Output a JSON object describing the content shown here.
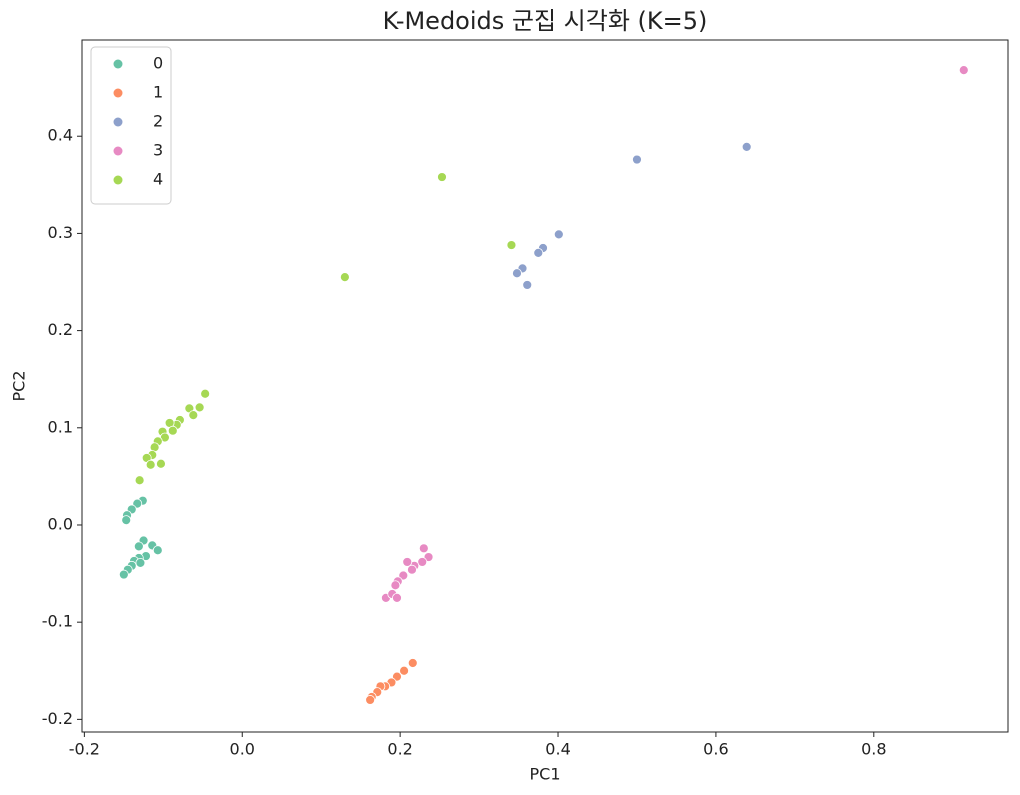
{
  "chart_data": {
    "type": "scatter",
    "title": "K-Medoids 군집 시각화 (K=5)",
    "x_label": "PC1",
    "y_label": "PC2",
    "xlim": [
      -0.203,
      0.97
    ],
    "ylim": [
      -0.213,
      0.499
    ],
    "xticks": [
      -0.2,
      {
        "value": 0,
        "label": "0.0"
      },
      0.2,
      0.4,
      0.6,
      0.8
    ],
    "yticks": [
      -0.2,
      -0.1,
      {
        "value": 0,
        "label": "0.0"
      },
      0.1,
      0.2,
      0.3,
      0.4
    ],
    "legend": "upper left",
    "series": [
      {
        "name": "0",
        "color": "#66c2a5",
        "x": [
          -0.126,
          -0.133,
          -0.14,
          -0.146,
          -0.147,
          -0.125,
          -0.131,
          -0.114,
          -0.107,
          -0.122,
          -0.131,
          -0.137,
          -0.129,
          -0.14,
          -0.145,
          -0.15
        ],
        "y": [
          0.025,
          0.022,
          0.016,
          0.01,
          0.005,
          -0.016,
          -0.022,
          -0.021,
          -0.026,
          -0.032,
          -0.034,
          -0.037,
          -0.039,
          -0.042,
          -0.046,
          -0.051
        ]
      },
      {
        "name": "1",
        "color": "#fc8d62",
        "x": [
          0.216,
          0.205,
          0.196,
          0.189,
          0.181,
          0.175,
          0.171,
          0.164,
          0.162
        ],
        "y": [
          -0.142,
          -0.15,
          -0.156,
          -0.162,
          -0.166,
          -0.166,
          -0.172,
          -0.177,
          -0.18
        ]
      },
      {
        "name": "2",
        "color": "#8da0cb",
        "x": [
          0.639,
          0.5,
          0.401,
          0.381,
          0.375,
          0.355,
          0.348,
          0.361
        ],
        "y": [
          0.389,
          0.376,
          0.299,
          0.285,
          0.28,
          0.264,
          0.259,
          0.247
        ]
      },
      {
        "name": "3",
        "color": "#e78ac3",
        "x": [
          0.914,
          0.23,
          0.236,
          0.228,
          0.218,
          0.209,
          0.215,
          0.204,
          0.197,
          0.194,
          0.182,
          0.19,
          0.196
        ],
        "y": [
          0.468,
          -0.024,
          -0.033,
          -0.038,
          -0.042,
          -0.038,
          -0.046,
          -0.052,
          -0.058,
          -0.062,
          -0.075,
          -0.071,
          -0.075
        ]
      },
      {
        "name": "4",
        "color": "#a6d854",
        "x": [
          0.253,
          0.341,
          0.13,
          -0.047,
          -0.054,
          -0.067,
          -0.062,
          -0.079,
          -0.083,
          -0.092,
          -0.088,
          -0.101,
          -0.098,
          -0.107,
          -0.111,
          -0.114,
          -0.121,
          -0.103,
          -0.116,
          -0.13
        ],
        "y": [
          0.358,
          0.288,
          0.255,
          0.135,
          0.121,
          0.12,
          0.113,
          0.108,
          0.103,
          0.105,
          0.097,
          0.096,
          0.09,
          0.086,
          0.08,
          0.072,
          0.069,
          0.063,
          0.062,
          0.046
        ]
      }
    ]
  }
}
